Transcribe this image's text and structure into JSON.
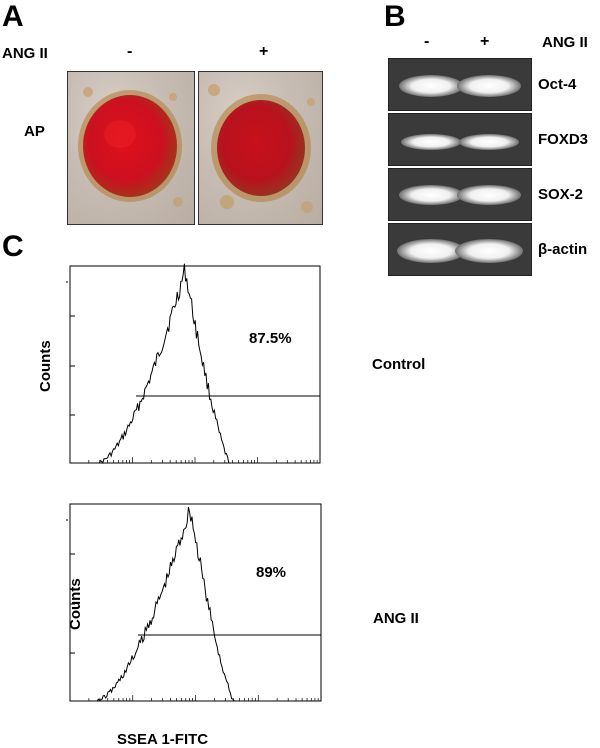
{
  "panel_a": {
    "letter": "A",
    "condition_label": "ANG II",
    "minus": "-",
    "plus": "+",
    "row_label": "AP"
  },
  "panel_b": {
    "letter": "B",
    "minus": "-",
    "plus": "+",
    "condition_label": "ANG II",
    "bands": [
      {
        "label": "Oct-4"
      },
      {
        "label": "FOXD3"
      },
      {
        "label": "SOX-2"
      },
      {
        "label": "β-actin"
      }
    ]
  },
  "panel_c": {
    "letter": "C",
    "ylabel": "Counts",
    "xlabel": "SSEA 1-FITC",
    "plots": [
      {
        "percent": "87.5%",
        "condition": "Control"
      },
      {
        "percent": "89%",
        "condition": "ANG II"
      }
    ]
  },
  "chart_data": [
    {
      "type": "line",
      "ylabel": "Counts",
      "xlabel": "",
      "x_scale": "log",
      "gate_percent": 87.5,
      "annotation": "87.5%",
      "condition": "Control"
    },
    {
      "type": "line",
      "ylabel": "Counts",
      "xlabel": "SSEA 1-FITC",
      "x_scale": "log",
      "gate_percent": 89,
      "annotation": "89%",
      "condition": "ANG II"
    }
  ]
}
